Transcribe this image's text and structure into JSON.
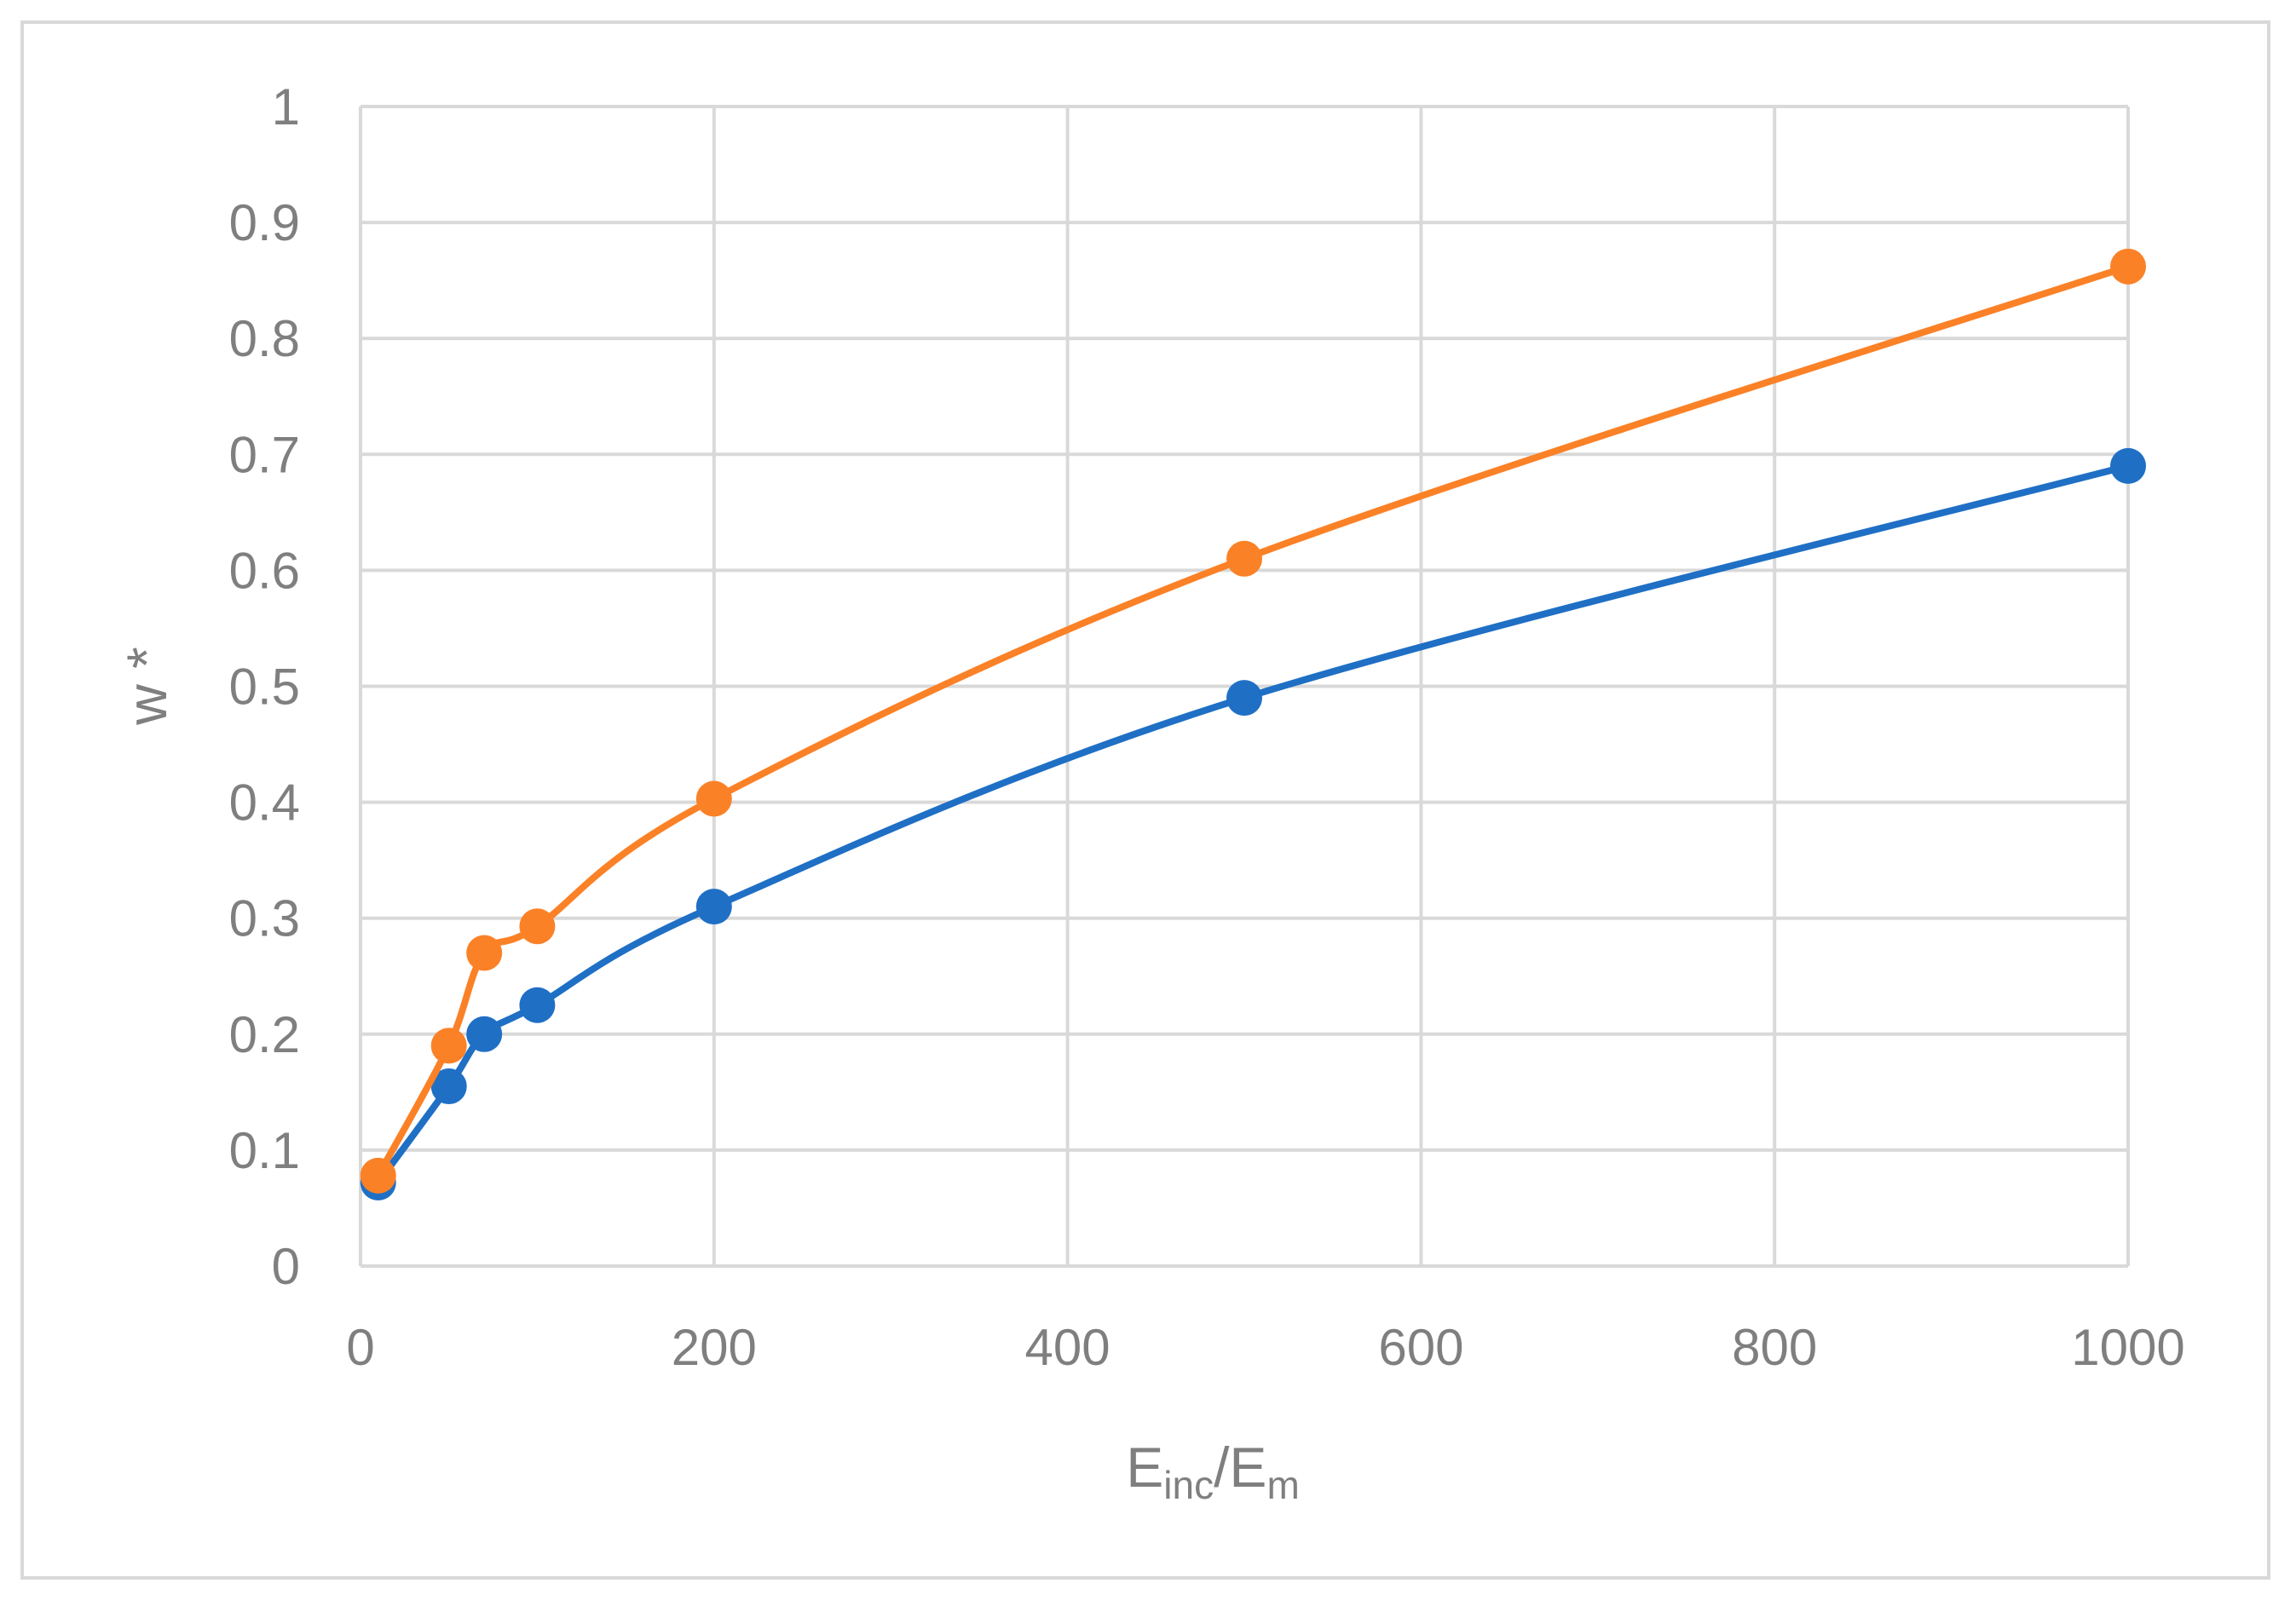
{
  "chart_data": {
    "type": "line",
    "title": "",
    "xlabel": {
      "main": "E",
      "sub1": "inc",
      "slash": "/E",
      "sub2": "m"
    },
    "ylabel": "w *",
    "xlim": [
      0,
      1000
    ],
    "ylim": [
      0,
      1
    ],
    "x_ticks": [
      0,
      200,
      400,
      600,
      800,
      1000
    ],
    "x_tick_labels": [
      "0",
      "200",
      "400",
      "600",
      "800",
      "1000"
    ],
    "y_ticks": [
      0,
      0.1,
      0.2,
      0.3,
      0.4,
      0.5,
      0.6,
      0.7,
      0.8,
      0.9,
      1
    ],
    "y_tick_labels": [
      "0",
      "0.1",
      "0.2",
      "0.3",
      "0.4",
      "0.5",
      "0.6",
      "0.7",
      "0.8",
      "0.9",
      "1"
    ],
    "grid": true,
    "legend": "none",
    "smooth": true,
    "x": [
      10,
      50,
      70,
      100,
      200,
      500,
      1000
    ],
    "series": [
      {
        "color": "#1f6fc5",
        "values": [
          0.072,
          0.155,
          0.2,
          0.225,
          0.31,
          0.49,
          0.69
        ]
      },
      {
        "color": "#fb8127",
        "values": [
          0.078,
          0.19,
          0.27,
          0.293,
          0.403,
          0.61,
          0.862
        ]
      }
    ]
  }
}
